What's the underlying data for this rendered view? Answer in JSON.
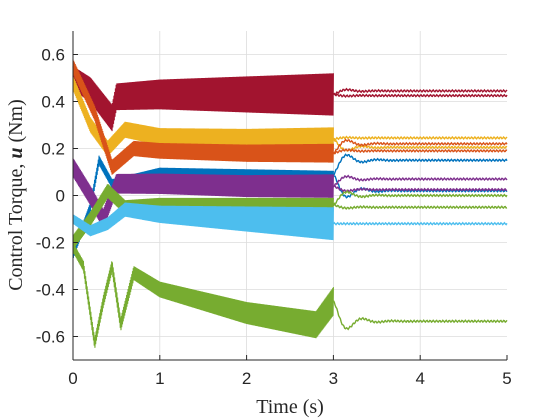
{
  "chart_data": {
    "type": "line",
    "title": "",
    "xlabel": "Time (s)",
    "ylabel_parts": [
      "Control Torque, ",
      "u",
      " (Nm)"
    ],
    "xlim": [
      0,
      5
    ],
    "ylim": [
      -0.7,
      0.7
    ],
    "xticks": [
      0,
      1,
      2,
      3,
      4,
      5
    ],
    "yticks": [
      -0.6,
      -0.4,
      -0.2,
      0,
      0.2,
      0.4,
      0.6
    ],
    "xtick_labels": [
      "0",
      "1",
      "2",
      "3",
      "4",
      "5"
    ],
    "ytick_labels": [
      "-0.6",
      "-0.4",
      "-0.2",
      "0",
      "0.2",
      "0.4",
      "0.6"
    ],
    "grid": true,
    "legend": "none",
    "switch_time": 3.0,
    "series": [
      {
        "color": "#A2142F",
        "keypoints": [
          [
            0.0,
            0.5
          ],
          [
            0.2,
            0.45
          ],
          [
            0.45,
            0.33
          ],
          [
            0.5,
            0.42
          ],
          [
            1.0,
            0.43
          ],
          [
            2.0,
            0.43
          ],
          [
            3.0,
            0.43
          ],
          [
            5.0,
            0.43
          ]
        ],
        "band_start": 0.05,
        "band_end": 0.09,
        "steady": [
          0.425,
          0.445
        ]
      },
      {
        "color": "#EDB120",
        "keypoints": [
          [
            0.0,
            0.48
          ],
          [
            0.2,
            0.3
          ],
          [
            0.4,
            0.2
          ],
          [
            0.6,
            0.28
          ],
          [
            1.0,
            0.25
          ],
          [
            2.0,
            0.24
          ],
          [
            3.0,
            0.24
          ],
          [
            5.0,
            0.24
          ]
        ],
        "band_start": 0.03,
        "band_end": 0.05,
        "steady": [
          0.245,
          0.205
        ]
      },
      {
        "color": "#D95319",
        "keypoints": [
          [
            0.0,
            0.55
          ],
          [
            0.25,
            0.35
          ],
          [
            0.45,
            0.12
          ],
          [
            0.7,
            0.2
          ],
          [
            1.0,
            0.19
          ],
          [
            2.0,
            0.18
          ],
          [
            3.0,
            0.18
          ],
          [
            5.0,
            0.18
          ]
        ],
        "band_start": 0.03,
        "band_end": 0.04,
        "steady": [
          0.19,
          0.22
        ]
      },
      {
        "color": "#0072BD",
        "keypoints": [
          [
            0.0,
            -0.25
          ],
          [
            0.2,
            -0.05
          ],
          [
            0.3,
            0.15
          ],
          [
            0.45,
            0.05
          ],
          [
            1.0,
            0.1
          ],
          [
            3.0,
            0.09
          ],
          [
            5.0,
            0.09
          ]
        ],
        "band_start": 0.02,
        "band_end": 0.015,
        "steady": [
          0.15,
          0.02
        ]
      },
      {
        "color": "#7E2F8E",
        "keypoints": [
          [
            0.0,
            0.12
          ],
          [
            0.2,
            0.0
          ],
          [
            0.35,
            -0.1
          ],
          [
            0.5,
            0.05
          ],
          [
            1.0,
            0.05
          ],
          [
            2.0,
            0.04
          ],
          [
            3.0,
            0.04
          ],
          [
            5.0,
            0.04
          ]
        ],
        "band_start": 0.04,
        "band_end": 0.05,
        "steady": [
          0.07,
          0.025
        ]
      },
      {
        "color": "#77AC30",
        "keypoints": [
          [
            0.0,
            -0.2
          ],
          [
            0.2,
            -0.1
          ],
          [
            0.4,
            0.02
          ],
          [
            0.6,
            -0.05
          ],
          [
            1.0,
            -0.04
          ],
          [
            2.0,
            -0.04
          ],
          [
            3.0,
            -0.04
          ],
          [
            5.0,
            -0.04
          ]
        ],
        "band_start": 0.03,
        "band_end": 0.03,
        "steady": [
          -0.05,
          0.0
        ]
      },
      {
        "color": "#4DBEEE",
        "keypoints": [
          [
            0.0,
            -0.1
          ],
          [
            0.2,
            -0.15
          ],
          [
            0.4,
            -0.12
          ],
          [
            0.6,
            -0.06
          ],
          [
            1.0,
            -0.08
          ],
          [
            2.0,
            -0.1
          ],
          [
            3.0,
            -0.12
          ],
          [
            5.0,
            -0.12
          ]
        ],
        "band_start": 0.02,
        "band_end": 0.07,
        "steady": [
          -0.12
        ]
      },
      {
        "color": "#77AC30",
        "keypoints": [
          [
            0.0,
            -0.22
          ],
          [
            0.12,
            -0.3
          ],
          [
            0.25,
            -0.63
          ],
          [
            0.35,
            -0.45
          ],
          [
            0.45,
            -0.3
          ],
          [
            0.55,
            -0.55
          ],
          [
            0.7,
            -0.33
          ],
          [
            1.0,
            -0.4
          ],
          [
            2.0,
            -0.5
          ],
          [
            2.8,
            -0.55
          ],
          [
            3.0,
            -0.45
          ],
          [
            5.0,
            -0.53
          ]
        ],
        "band_start": 0.02,
        "band_end": 0.06,
        "steady": [
          -0.535
        ]
      }
    ]
  }
}
